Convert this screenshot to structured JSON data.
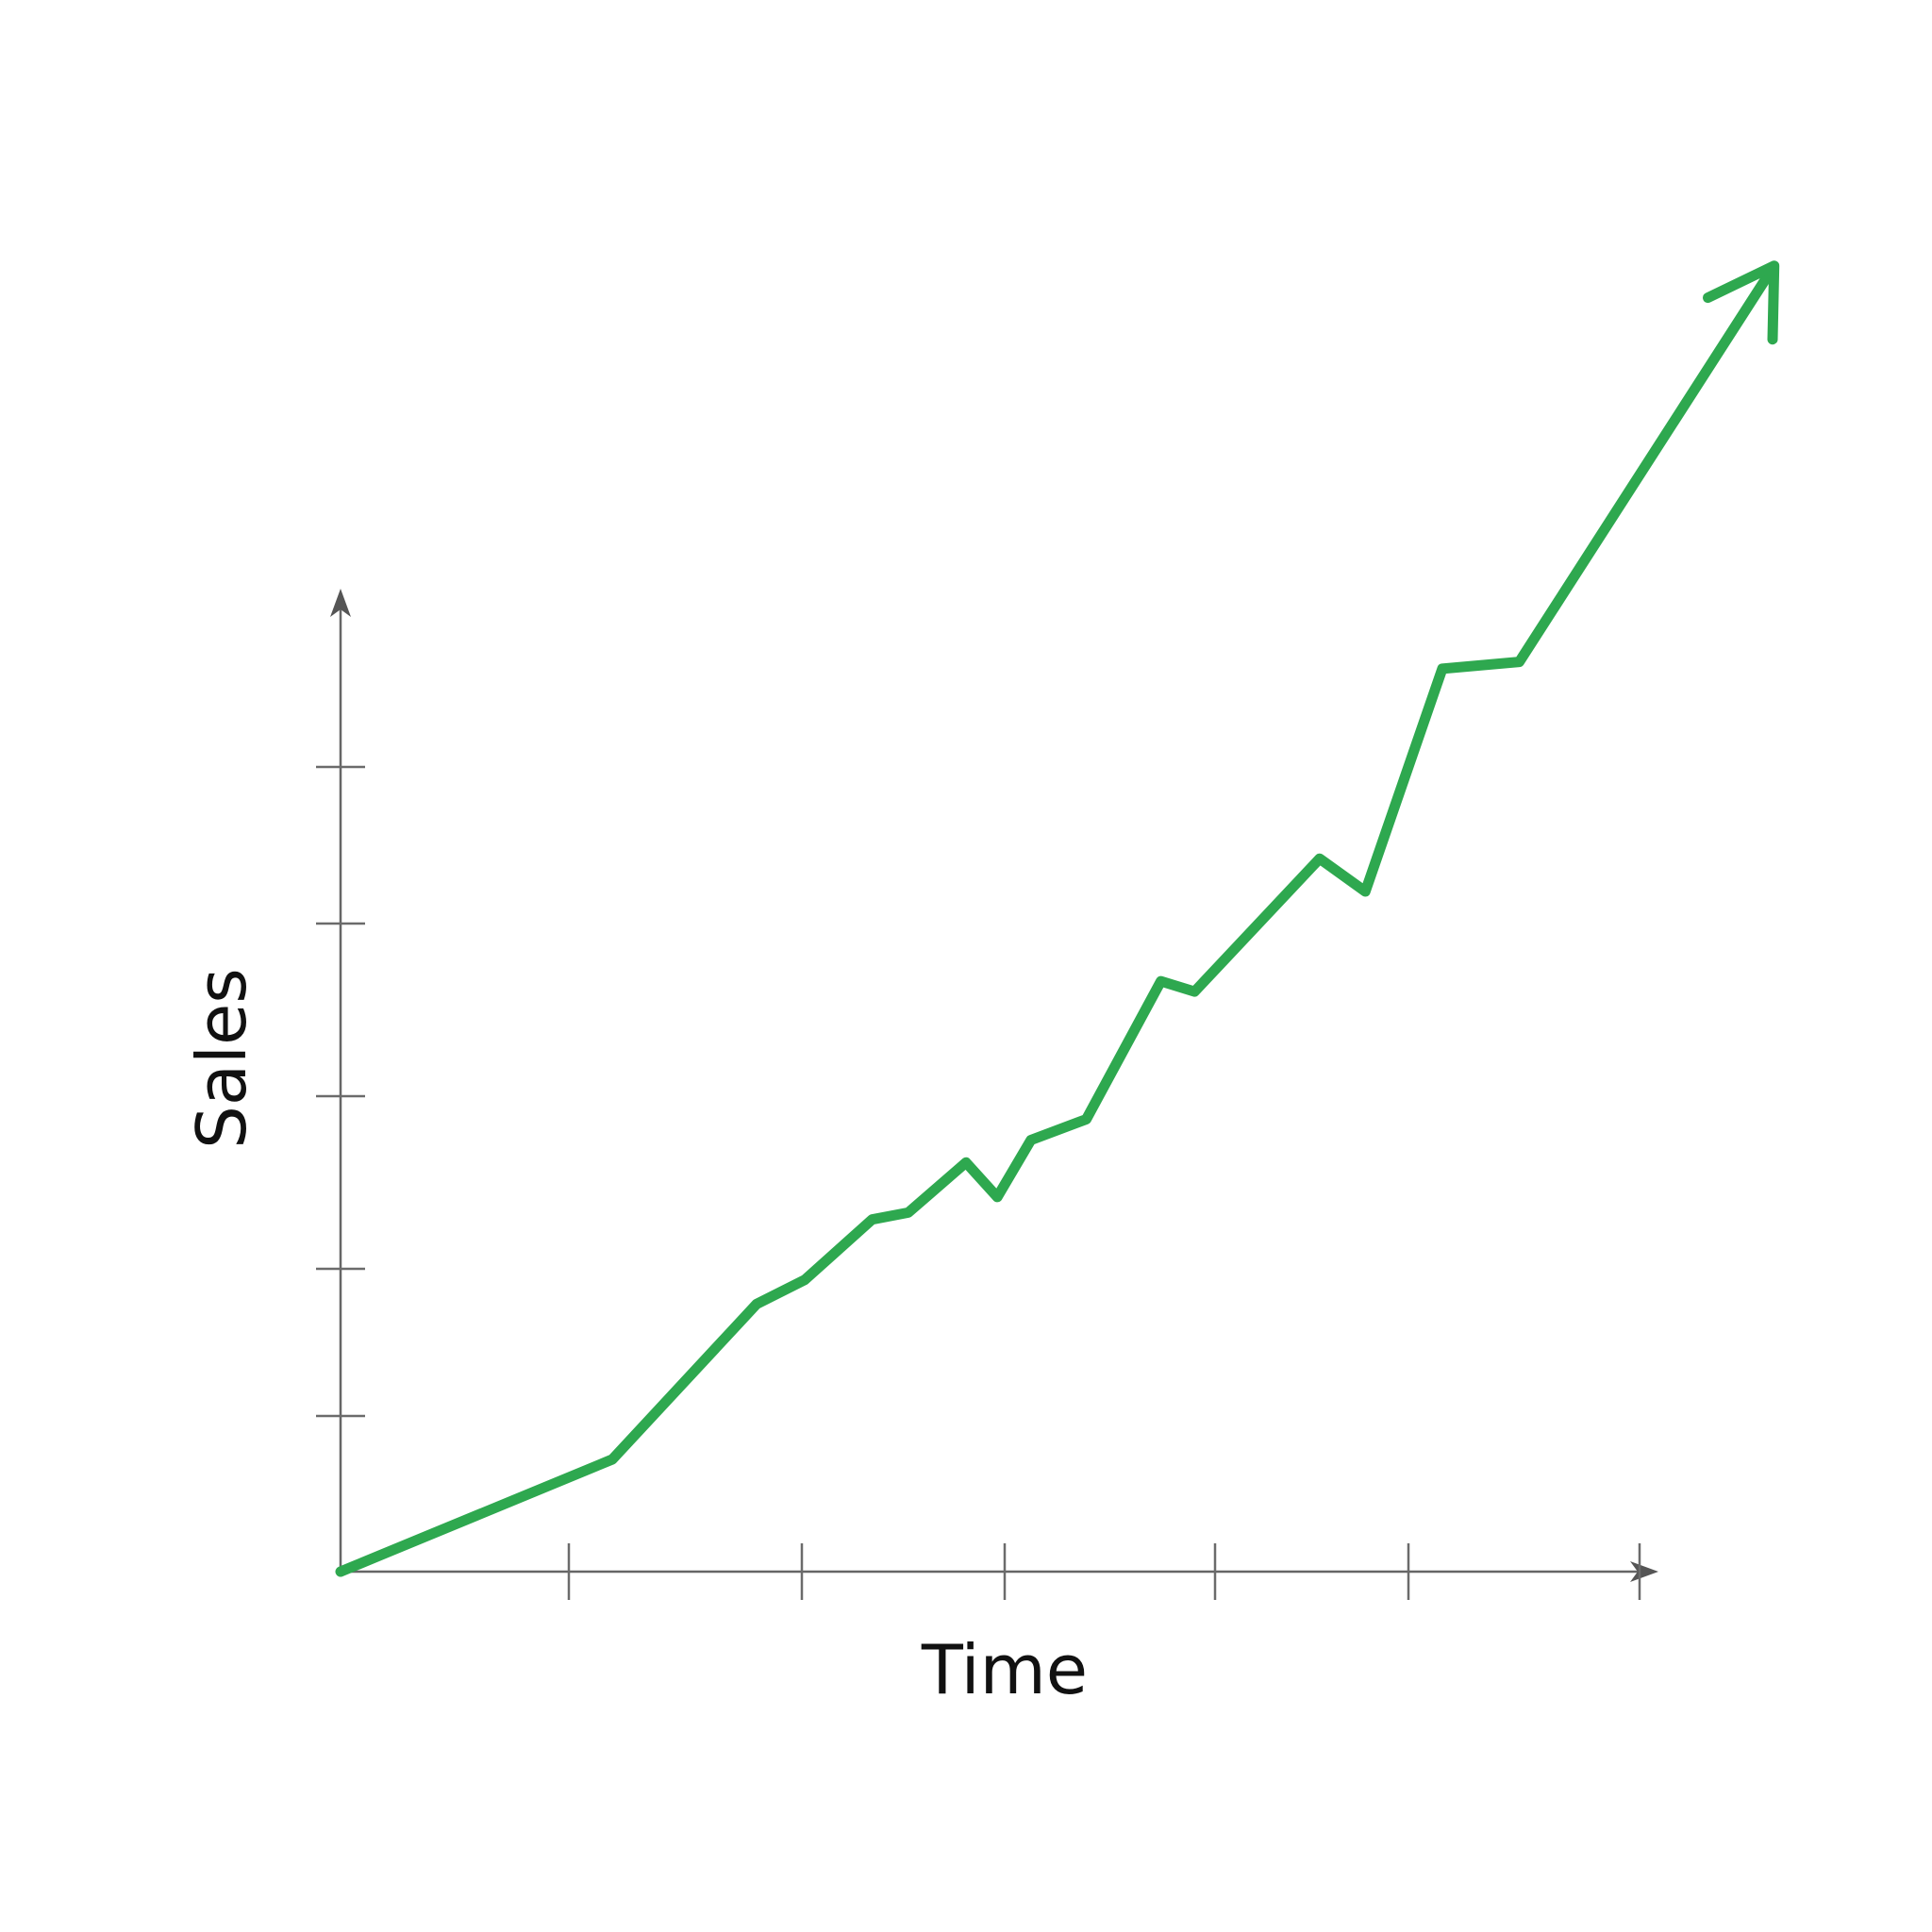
{
  "chart_data": {
    "type": "line",
    "title": "",
    "xlabel": "Time",
    "ylabel": "Sales",
    "x_ticks": 6,
    "y_ticks": 5,
    "xlim": [
      0,
      6
    ],
    "ylim": [
      0,
      6.2
    ],
    "grid": false,
    "arrow_at_end": true,
    "line_color": "#2ea84f",
    "axis_color": "#666666",
    "series": [
      {
        "x": [
          0,
          1.13,
          1.73,
          1.93,
          2.21,
          2.36,
          2.6,
          2.73,
          2.87,
          3.1,
          3.41,
          3.55,
          4.07,
          4.26,
          4.58,
          4.9,
          5.93
        ],
        "y": [
          0,
          0.65,
          1.55,
          1.69,
          2.04,
          2.08,
          2.37,
          2.17,
          2.5,
          2.62,
          3.42,
          3.36,
          4.13,
          3.94,
          5.23,
          5.27,
          7.5
        ]
      }
    ]
  }
}
